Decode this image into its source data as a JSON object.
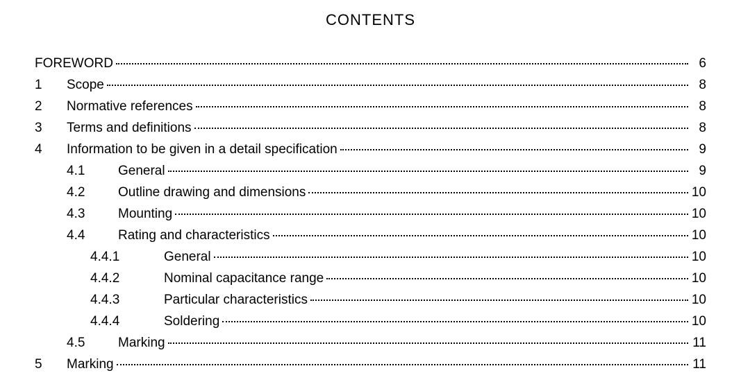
{
  "title": "CONTENTS",
  "entries": [
    {
      "level": 0,
      "number": "",
      "label": "FOREWORD",
      "page": "6"
    },
    {
      "level": 1,
      "number": "1",
      "label": "Scope",
      "page": "8"
    },
    {
      "level": 1,
      "number": "2",
      "label": "Normative references",
      "page": "8"
    },
    {
      "level": 1,
      "number": "3",
      "label": "Terms and definitions",
      "page": "8"
    },
    {
      "level": 1,
      "number": "4",
      "label": "Information to be given in a detail specification",
      "page": "9"
    },
    {
      "level": 2,
      "number": "4.1",
      "label": "General",
      "page": "9"
    },
    {
      "level": 2,
      "number": "4.2",
      "label": "Outline drawing and dimensions",
      "page": "10"
    },
    {
      "level": 2,
      "number": "4.3",
      "label": "Mounting",
      "page": "10"
    },
    {
      "level": 2,
      "number": "4.4",
      "label": "Rating and characteristics",
      "page": "10"
    },
    {
      "level": 3,
      "number": "4.4.1",
      "label": "General",
      "page": "10"
    },
    {
      "level": 3,
      "number": "4.4.2",
      "label": "Nominal capacitance range",
      "page": "10"
    },
    {
      "level": 3,
      "number": "4.4.3",
      "label": "Particular characteristics",
      "page": "10"
    },
    {
      "level": 3,
      "number": "4.4.4",
      "label": "Soldering",
      "page": "10"
    },
    {
      "level": 2,
      "number": "4.5",
      "label": "Marking",
      "page": "11"
    },
    {
      "level": 1,
      "number": "5",
      "label": "Marking",
      "page": "11"
    }
  ]
}
